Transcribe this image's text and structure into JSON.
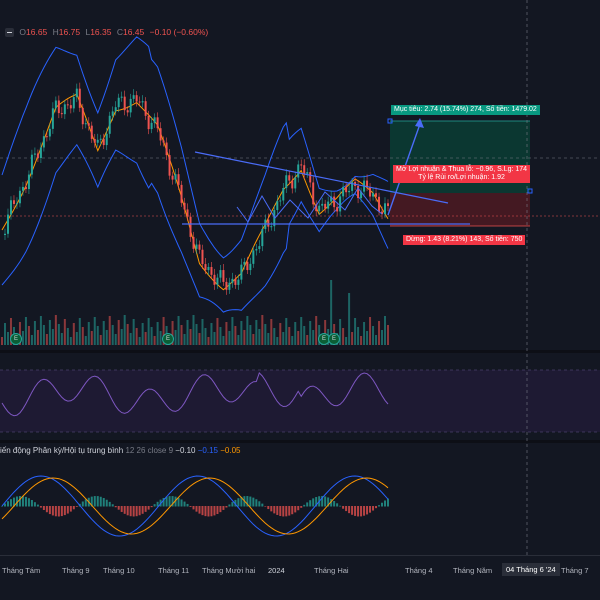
{
  "legend": {
    "open_label": "O",
    "open": "16.65",
    "high_label": "H",
    "high": "16.75",
    "low_label": "L",
    "low": "16.35",
    "close_label": "C",
    "close": "16.45",
    "change": "−0.10 (−0.60%)"
  },
  "position": {
    "target_label": "Mục tiêu: 2.74 (15.74%) 274, Số tiền: 1479.02",
    "mid_label_line1": "Mở Lợi nhuận & Thua lỗ: −0.96, S.Lg: 174",
    "mid_label_line2": "Tỷ lệ Rủi ro/Lợi nhuận: 1.92",
    "stop_label": "Dừng: 1.43 (8.21%) 143, Số tiền: 750"
  },
  "macd": {
    "title": "iến động Phân kỳ/Hội tụ trung bình",
    "params": "12 26 close 9",
    "v1": "−0.10",
    "v2": "−0.15",
    "v3": "−0.05"
  },
  "markers": [
    "E",
    "E",
    "E",
    "E"
  ],
  "time_axis": [
    "Tháng Tám",
    "Tháng 9",
    "Tháng 10",
    "Tháng 11",
    "Tháng Mười hai",
    "2024",
    "Tháng Hai",
    "Tháng 4",
    "Tháng Năm",
    "Tháng 7"
  ],
  "time_axis_highlight": "04 Tháng 6 '24",
  "colors": {
    "up": "#26a69a",
    "down": "#ef5350",
    "band": "#2962ff",
    "basis": "#ff9800",
    "rsi": "#7e57c2",
    "target_zone": "#0b3d34",
    "stop_zone": "#4a1a22"
  },
  "icons": [
    "minus-icon"
  ]
}
